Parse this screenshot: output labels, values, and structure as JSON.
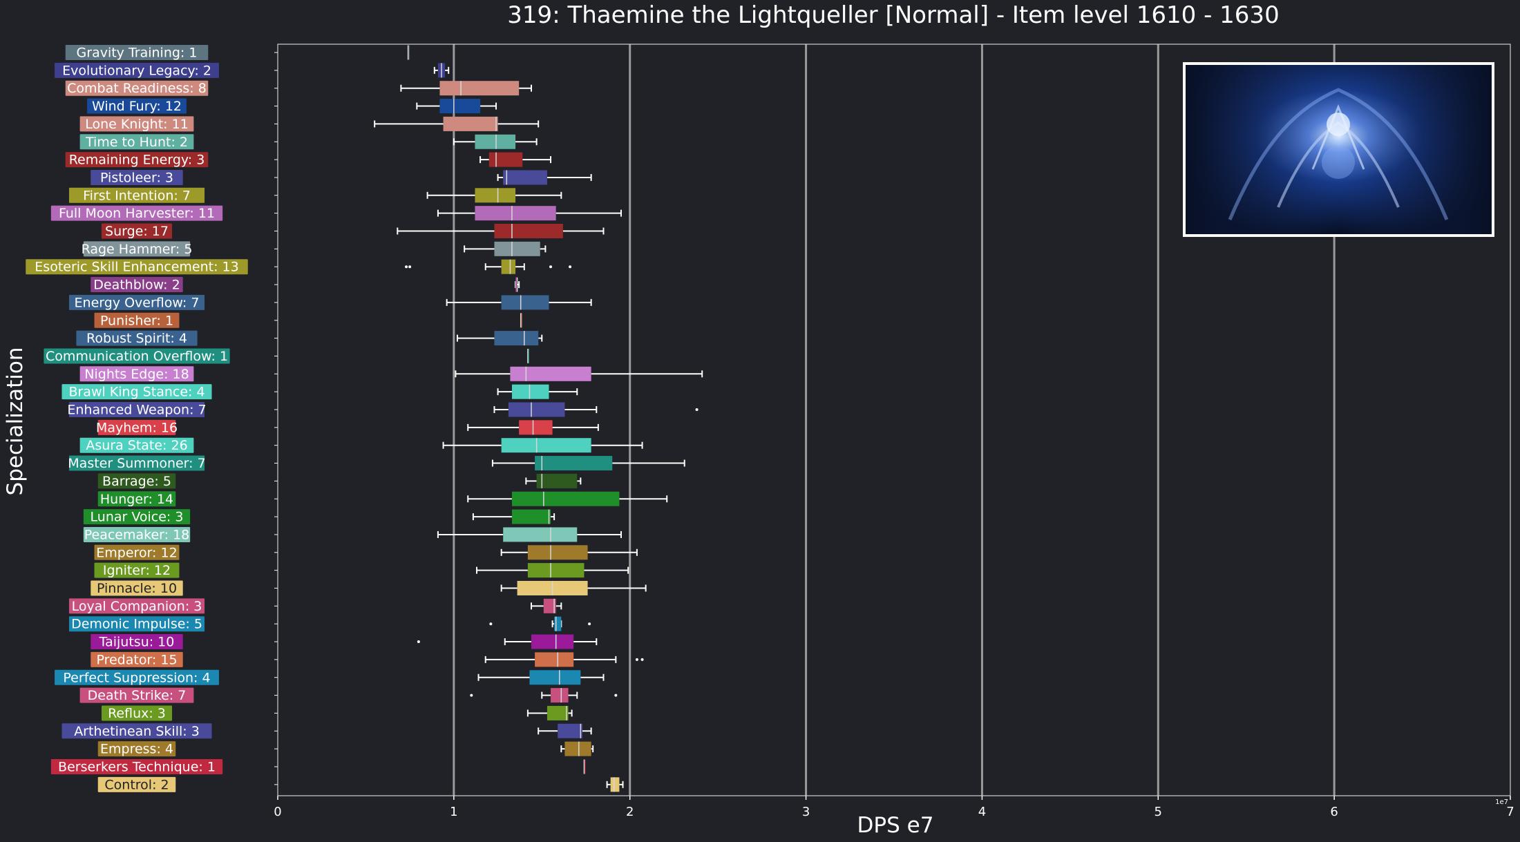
{
  "chart_data": {
    "type": "box",
    "title": "319: Thaemine the Lightqueller [Normal] - Item level 1610 - 1630",
    "xlabel": "DPS e7",
    "ylabel": "Specialization",
    "xlim": [
      0,
      7
    ],
    "xticks": [
      0,
      1,
      2,
      3,
      4,
      5,
      6,
      7
    ],
    "x_offset_label": "1e7",
    "grid": "vertical",
    "image_panel": "boss-artwork",
    "colors": {
      "background": "#202227",
      "text": "#ffffff",
      "grid": "#9a9a9a",
      "whisker": "#ffffff"
    },
    "specs": [
      {
        "label": "Gravity Training: 1",
        "color": "#5c7580",
        "stats": [
          0.74,
          0.74,
          0.74,
          0.74,
          0.74
        ],
        "outliers": []
      },
      {
        "label": "Evolutionary Legacy: 2",
        "color": "#3f3f8f",
        "stats": [
          0.89,
          0.91,
          0.93,
          0.95,
          0.97
        ],
        "outliers": []
      },
      {
        "label": "Combat Readiness: 8",
        "color": "#cf8a80",
        "stats": [
          0.7,
          0.92,
          1.04,
          1.37,
          1.44
        ],
        "outliers": []
      },
      {
        "label": "Wind Fury: 12",
        "color": "#184a99",
        "stats": [
          0.79,
          0.92,
          1.0,
          1.15,
          1.24
        ],
        "outliers": []
      },
      {
        "label": "Lone Knight: 11",
        "color": "#cf8a80",
        "stats": [
          0.55,
          0.94,
          1.24,
          1.25,
          1.48
        ],
        "outliers": []
      },
      {
        "label": "Time to Hunt: 2",
        "color": "#5fb0a0",
        "stats": [
          1.0,
          1.12,
          1.24,
          1.35,
          1.47
        ],
        "outliers": []
      },
      {
        "label": "Remaining Energy: 3",
        "color": "#9c2a2a",
        "stats": [
          1.15,
          1.2,
          1.24,
          1.39,
          1.55
        ],
        "outliers": []
      },
      {
        "label": "Pistoleer: 3",
        "color": "#4a4a9a",
        "stats": [
          1.25,
          1.28,
          1.3,
          1.53,
          1.78
        ],
        "outliers": []
      },
      {
        "label": "First Intention: 7",
        "color": "#9e9a2a",
        "stats": [
          0.85,
          1.12,
          1.25,
          1.35,
          1.61
        ],
        "outliers": []
      },
      {
        "label": "Full Moon Harvester: 11",
        "color": "#b36ab8",
        "stats": [
          0.91,
          1.12,
          1.33,
          1.58,
          1.95
        ],
        "outliers": []
      },
      {
        "label": "Surge: 17",
        "color": "#9c2a2a",
        "stats": [
          0.68,
          1.23,
          1.33,
          1.62,
          1.85
        ],
        "outliers": []
      },
      {
        "label": "Rage Hammer: 5",
        "color": "#80949a",
        "stats": [
          1.06,
          1.23,
          1.33,
          1.49,
          1.52
        ],
        "outliers": []
      },
      {
        "label": "Esoteric Skill Enhancement: 13",
        "color": "#9e9a2a",
        "stats": [
          1.18,
          1.27,
          1.32,
          1.35,
          1.4
        ],
        "outliers": [
          0.73,
          0.75,
          1.55,
          1.66
        ]
      },
      {
        "label": "Deathblow: 2",
        "color": "#8a3e8a",
        "stats": [
          1.35,
          1.35,
          1.36,
          1.36,
          1.37
        ],
        "outliers": []
      },
      {
        "label": "Energy Overflow: 7",
        "color": "#3a628f",
        "stats": [
          0.96,
          1.27,
          1.38,
          1.54,
          1.78
        ],
        "outliers": []
      },
      {
        "label": "Punisher: 1",
        "color": "#b8613a",
        "stats": [
          1.38,
          1.38,
          1.38,
          1.38,
          1.38
        ],
        "outliers": []
      },
      {
        "label": "Robust Spirit: 4",
        "color": "#3a628f",
        "stats": [
          1.02,
          1.23,
          1.4,
          1.48,
          1.5
        ],
        "outliers": []
      },
      {
        "label": "Communication Overflow: 1",
        "color": "#1f8f80",
        "stats": [
          1.42,
          1.42,
          1.42,
          1.42,
          1.42
        ],
        "outliers": []
      },
      {
        "label": "Nights Edge: 18",
        "color": "#c87fd0",
        "stats": [
          1.01,
          1.32,
          1.41,
          1.78,
          2.41
        ],
        "outliers": []
      },
      {
        "label": "Brawl King Stance: 4",
        "color": "#4fd1c0",
        "stats": [
          1.25,
          1.33,
          1.43,
          1.54,
          1.7
        ],
        "outliers": []
      },
      {
        "label": "Enhanced Weapon: 7",
        "color": "#4a4a9a",
        "stats": [
          1.23,
          1.31,
          1.44,
          1.63,
          1.81
        ],
        "outliers": [
          2.38
        ]
      },
      {
        "label": "Mayhem: 16",
        "color": "#d9404a",
        "stats": [
          1.08,
          1.37,
          1.45,
          1.56,
          1.82
        ],
        "outliers": []
      },
      {
        "label": "Asura State: 26",
        "color": "#4fd1c0",
        "stats": [
          0.94,
          1.27,
          1.47,
          1.78,
          2.07
        ],
        "outliers": []
      },
      {
        "label": "Master Summoner: 7",
        "color": "#1f8f80",
        "stats": [
          1.22,
          1.46,
          1.5,
          1.9,
          2.31
        ],
        "outliers": []
      },
      {
        "label": "Barrage: 5",
        "color": "#2f5a1f",
        "stats": [
          1.41,
          1.47,
          1.5,
          1.7,
          1.72
        ],
        "outliers": []
      },
      {
        "label": "Hunger: 14",
        "color": "#1f8f2a",
        "stats": [
          1.08,
          1.33,
          1.51,
          1.94,
          2.21
        ],
        "outliers": []
      },
      {
        "label": "Lunar Voice: 3",
        "color": "#1f8f2a",
        "stats": [
          1.11,
          1.33,
          1.54,
          1.55,
          1.57
        ],
        "outliers": []
      },
      {
        "label": "Peacemaker: 18",
        "color": "#7fc8b8",
        "stats": [
          0.91,
          1.28,
          1.55,
          1.7,
          1.95
        ],
        "outliers": []
      },
      {
        "label": "Emperor: 12",
        "color": "#9e7a2a",
        "stats": [
          1.27,
          1.42,
          1.55,
          1.76,
          2.04
        ],
        "outliers": []
      },
      {
        "label": "Igniter: 12",
        "color": "#6a9a1f",
        "stats": [
          1.13,
          1.42,
          1.55,
          1.74,
          1.99
        ],
        "outliers": []
      },
      {
        "label": "Pinnacle: 10",
        "color": "#e6c877",
        "stats": [
          1.27,
          1.36,
          1.56,
          1.76,
          2.09
        ],
        "outliers": []
      },
      {
        "label": "Loyal Companion: 3",
        "color": "#c8507f",
        "stats": [
          1.44,
          1.51,
          1.57,
          1.58,
          1.61
        ],
        "outliers": []
      },
      {
        "label": "Demonic Impulse: 5",
        "color": "#1a88b0",
        "stats": [
          1.56,
          1.57,
          1.58,
          1.61,
          1.61
        ],
        "outliers": [
          1.21,
          1.77
        ]
      },
      {
        "label": "Taijutsu: 10",
        "color": "#9a1a9a",
        "stats": [
          1.29,
          1.44,
          1.58,
          1.68,
          1.81
        ],
        "outliers": [
          0.8
        ]
      },
      {
        "label": "Predator: 15",
        "color": "#d0704a",
        "stats": [
          1.18,
          1.46,
          1.59,
          1.68,
          1.92
        ],
        "outliers": [
          2.04,
          2.07
        ]
      },
      {
        "label": "Perfect Suppression: 4",
        "color": "#1a88b0",
        "stats": [
          1.14,
          1.43,
          1.6,
          1.72,
          1.85
        ],
        "outliers": []
      },
      {
        "label": "Death Strike: 7",
        "color": "#c8507f",
        "stats": [
          1.5,
          1.55,
          1.61,
          1.65,
          1.7
        ],
        "outliers": [
          1.1,
          1.92
        ]
      },
      {
        "label": "Reflux: 3",
        "color": "#6a9a1f",
        "stats": [
          1.42,
          1.53,
          1.64,
          1.65,
          1.67
        ],
        "outliers": []
      },
      {
        "label": "Arthetinean Skill: 3",
        "color": "#4a4a9a",
        "stats": [
          1.48,
          1.59,
          1.72,
          1.73,
          1.78
        ],
        "outliers": []
      },
      {
        "label": "Empress: 4",
        "color": "#9e7a2a",
        "stats": [
          1.61,
          1.63,
          1.71,
          1.78,
          1.79
        ],
        "outliers": []
      },
      {
        "label": "Berserkers Technique: 1",
        "color": "#c0293f",
        "stats": [
          1.74,
          1.74,
          1.74,
          1.74,
          1.74
        ],
        "outliers": []
      },
      {
        "label": "Control: 2",
        "color": "#e6c877",
        "stats": [
          1.87,
          1.89,
          1.91,
          1.94,
          1.96
        ],
        "outliers": []
      }
    ]
  }
}
